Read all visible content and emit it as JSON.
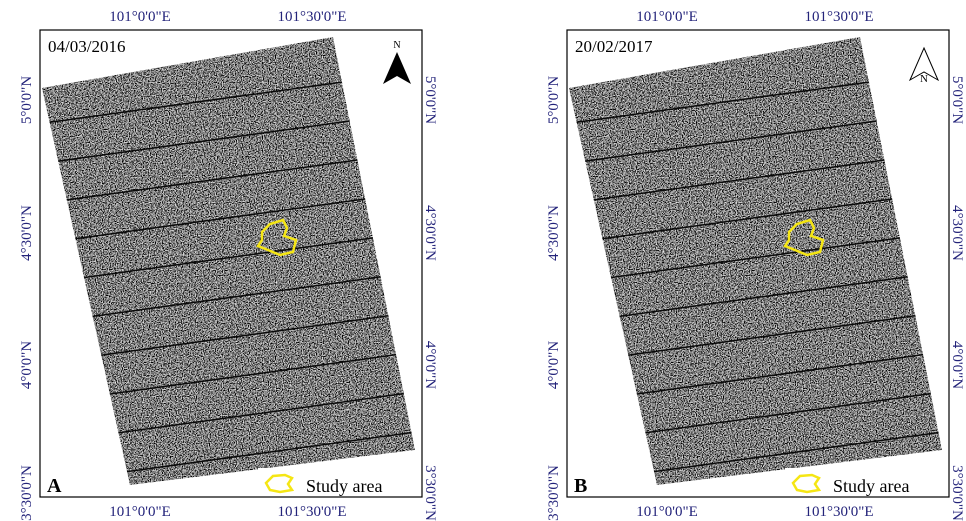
{
  "panels": [
    {
      "letter": "A",
      "date": "04/03/2016",
      "north": "N",
      "legend": "Study area",
      "top_labels": [
        "101°0'0\"E",
        "101°30'0\"E"
      ],
      "bottom_labels": [
        "101°0'0\"E",
        "101°30'0\"E"
      ],
      "left_labels": [
        "5°0'0\"N",
        "4°30'0\"N",
        "4°0'0\"N",
        "3°30'0\"N"
      ],
      "right_labels": [
        "5°0'0\"N",
        "4°30'0\"N",
        "4°0'0\"N",
        "3°30'0\"N"
      ]
    },
    {
      "letter": "B",
      "date": "20/02/2017",
      "north": "N",
      "legend": "Study area",
      "top_labels": [
        "101°0'0\"E",
        "101°30'0\"E"
      ],
      "bottom_labels": [
        "101°0'0\"E",
        "101°30'0\"E"
      ],
      "left_labels": [
        "5°0'0\"N",
        "4°30'0\"N",
        "4°0'0\"N",
        "3°30'0\"N"
      ],
      "right_labels": [
        "5°0'0\"N",
        "4°30'0\"N",
        "4°0'0\"N",
        "3°30'0\"N"
      ]
    }
  ]
}
